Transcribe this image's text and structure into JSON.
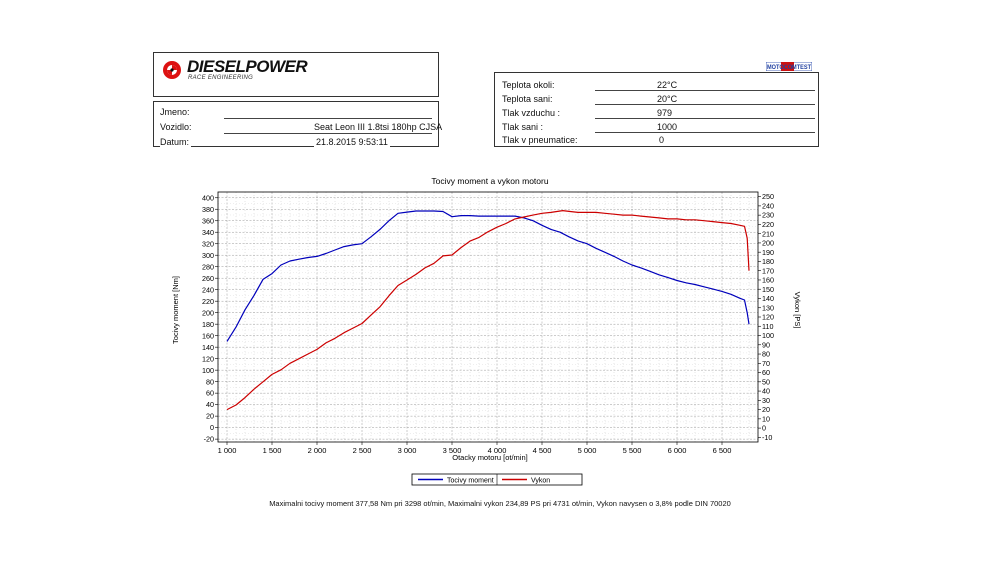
{
  "header": {
    "brand": "DIESELPOWER",
    "brand_sub": "RACE ENGINEERING",
    "badge": "MOTOCOMTEST"
  },
  "vehicle_info": {
    "fields": [
      {
        "label": "Jmeno:",
        "value": ""
      },
      {
        "label": "Vozidlo:",
        "value": "Seat Leon III 1.8tsi 180hp CJSA"
      },
      {
        "label": "Datum:",
        "value": "21.8.2015 9:53:11"
      }
    ]
  },
  "conditions": {
    "fields": [
      {
        "label": "Teplota okoli:",
        "value": "22°C"
      },
      {
        "label": "Teplota sani:",
        "value": "20°C"
      },
      {
        "label": "Tlak vzduchu :",
        "value": "979"
      },
      {
        "label": "Tlak sani :",
        "value": "1000"
      },
      {
        "label": "Tlak v pneumatice:",
        "value": "0"
      }
    ]
  },
  "colors": {
    "torque": "#0000bb",
    "power": "#cc0000"
  },
  "chart_data": {
    "type": "line",
    "title": "Tocivy moment a vykon motoru",
    "xlabel": "Otacky motoru [ot/min]",
    "ylabel_left": "Tocivy moment [Nm]",
    "ylabel_right": "Vykon [PS]",
    "xlim": [
      900,
      6900
    ],
    "x_ticks": [
      1000,
      1500,
      2000,
      2500,
      3000,
      3500,
      4000,
      4500,
      5000,
      5500,
      6000,
      6500
    ],
    "x_tick_labels": [
      "1 000",
      "1 500",
      "2 000",
      "2 500",
      "3 000",
      "3 500",
      "4 000",
      "4 500",
      "5 000",
      "5 500",
      "6 000",
      "6 500"
    ],
    "ylim_left": [
      -25,
      410
    ],
    "y_left_ticks": [
      -20,
      0,
      20,
      40,
      60,
      80,
      100,
      120,
      140,
      160,
      180,
      200,
      220,
      240,
      260,
      280,
      300,
      320,
      340,
      360,
      380,
      400
    ],
    "ylim_right": [
      -15,
      255
    ],
    "y_right_ticks": [
      -10,
      0,
      10,
      20,
      30,
      40,
      50,
      60,
      70,
      80,
      90,
      100,
      110,
      120,
      130,
      140,
      150,
      160,
      170,
      180,
      190,
      200,
      210,
      220,
      230,
      240,
      250
    ],
    "grid": true,
    "legend_position": "bottom-left",
    "series": [
      {
        "name": "Tocivy moment",
        "axis": "left",
        "x": [
          1000,
          1100,
          1200,
          1300,
          1400,
          1500,
          1600,
          1700,
          1800,
          1900,
          2000,
          2100,
          2200,
          2300,
          2400,
          2500,
          2600,
          2700,
          2800,
          2900,
          3000,
          3100,
          3200,
          3298,
          3400,
          3500,
          3600,
          3700,
          3800,
          3900,
          4000,
          4100,
          4200,
          4300,
          4400,
          4500,
          4600,
          4700,
          4800,
          4900,
          5000,
          5100,
          5200,
          5300,
          5400,
          5500,
          5600,
          5700,
          5800,
          5900,
          6000,
          6100,
          6200,
          6300,
          6400,
          6500,
          6600,
          6700,
          6750,
          6780,
          6800
        ],
        "values": [
          150,
          175,
          205,
          230,
          258,
          268,
          283,
          290,
          293,
          296,
          298,
          303,
          309,
          315,
          318,
          320,
          332,
          345,
          360,
          373,
          375,
          377,
          377,
          377,
          376,
          367,
          369,
          369,
          368,
          368,
          368,
          368,
          368,
          365,
          360,
          352,
          345,
          340,
          332,
          325,
          320,
          312,
          305,
          298,
          290,
          283,
          278,
          272,
          266,
          261,
          256,
          252,
          249,
          245,
          241,
          237,
          232,
          225,
          222,
          200,
          180
        ]
      },
      {
        "name": "Vykon",
        "axis": "right",
        "x": [
          1000,
          1100,
          1200,
          1300,
          1400,
          1500,
          1600,
          1700,
          1800,
          1900,
          2000,
          2100,
          2200,
          2300,
          2400,
          2500,
          2600,
          2700,
          2800,
          2900,
          3000,
          3100,
          3200,
          3300,
          3400,
          3500,
          3600,
          3700,
          3800,
          3900,
          4000,
          4100,
          4200,
          4300,
          4400,
          4500,
          4600,
          4731,
          4800,
          4900,
          5000,
          5100,
          5200,
          5300,
          5400,
          5500,
          5600,
          5700,
          5800,
          5900,
          6000,
          6100,
          6200,
          6300,
          6400,
          6500,
          6600,
          6700,
          6750,
          6780,
          6800
        ],
        "values": [
          20,
          25,
          33,
          42,
          50,
          58,
          63,
          70,
          75,
          80,
          85,
          92,
          97,
          103,
          108,
          113,
          122,
          131,
          143,
          154,
          160,
          166,
          173,
          178,
          186,
          187,
          195,
          202,
          206,
          212,
          217,
          221,
          226,
          228,
          230,
          232,
          233,
          234.89,
          234,
          233,
          233,
          233,
          232,
          231,
          230,
          230,
          229,
          228,
          227,
          226,
          226,
          225,
          225,
          224,
          223,
          222,
          221,
          219,
          218,
          205,
          170
        ]
      }
    ]
  },
  "footer": {
    "text": "Maximalni tocivy moment 377,58 Nm pri 3298 ot/min,  Maximalni vykon 234,89 PS pri 4731 ot/min,  Vykon navysen o 3,8% podle DIN 70020"
  }
}
